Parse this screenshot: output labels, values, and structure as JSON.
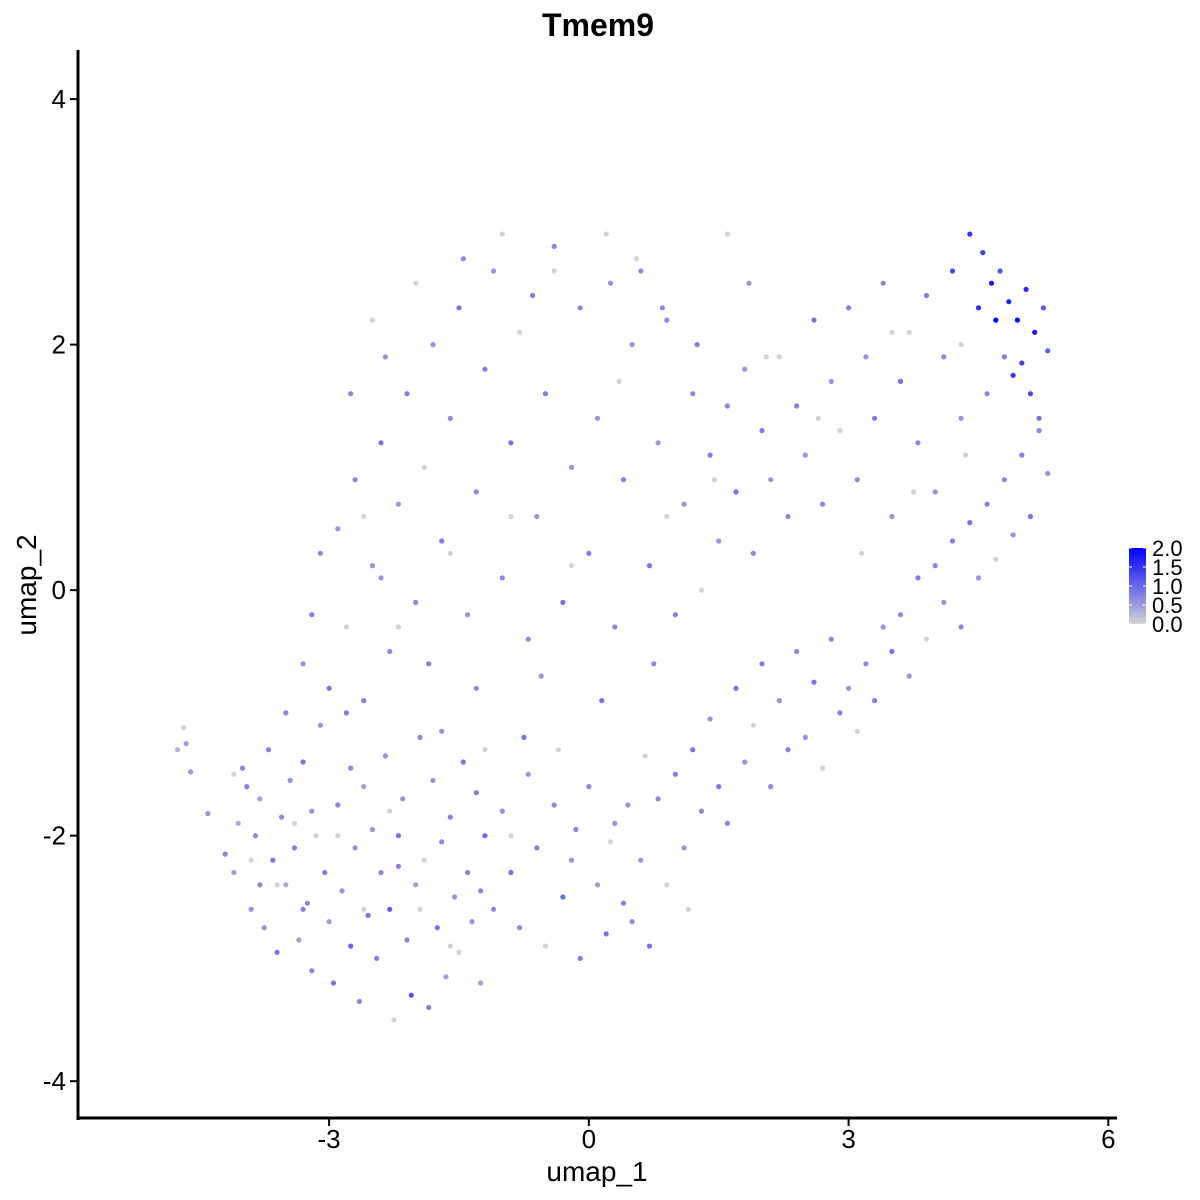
{
  "chart_data": {
    "type": "scatter",
    "title": "Tmem9",
    "xlabel": "umap_1",
    "ylabel": "umap_2",
    "xlim": [
      -5.9,
      6.1
    ],
    "ylim": [
      -4.3,
      4.4
    ],
    "x_ticks": [
      -3,
      0,
      3,
      6
    ],
    "y_ticks": [
      -4,
      -2,
      0,
      2,
      4
    ],
    "x_tick_labels": [
      "-3",
      "0",
      "3",
      "6"
    ],
    "y_tick_labels": [
      "-4",
      "-2",
      "0",
      "2",
      "4"
    ],
    "grid": false,
    "color_scale": {
      "low": "#d3d3d3",
      "high": "#0000ff",
      "min": 0.0,
      "max": 2.0,
      "ticks": [
        0.0,
        0.5,
        1.0,
        1.5,
        2.0
      ],
      "tick_labels": [
        "0.0",
        "0.5",
        "1.0",
        "1.5",
        "2.0"
      ],
      "placement": "right"
    },
    "points": [
      [
        -4.75,
        -1.3,
        0.3
      ],
      [
        -4.68,
        -1.12,
        0.0
      ],
      [
        -4.65,
        -1.25,
        0.5
      ],
      [
        -4.6,
        -1.48,
        0.6
      ],
      [
        -4.4,
        -1.82,
        0.6
      ],
      [
        -4.2,
        -2.15,
        0.7
      ],
      [
        -4.1,
        -2.3,
        0.5
      ],
      [
        -4.05,
        -1.9,
        0.4
      ],
      [
        -4.0,
        -1.45,
        0.7
      ],
      [
        -3.95,
        -1.6,
        0.8
      ],
      [
        -3.9,
        -2.6,
        0.6
      ],
      [
        -3.85,
        -2.0,
        0.7
      ],
      [
        -3.8,
        -1.7,
        0.5
      ],
      [
        -3.75,
        -2.75,
        0.6
      ],
      [
        -3.7,
        -1.3,
        0.8
      ],
      [
        -3.65,
        -2.2,
        0.9
      ],
      [
        -3.6,
        -2.95,
        0.9
      ],
      [
        -3.55,
        -1.85,
        0.7
      ],
      [
        -3.5,
        -2.4,
        0.4
      ],
      [
        -3.45,
        -1.55,
        0.6
      ],
      [
        -3.4,
        -2.1,
        0.8
      ],
      [
        -3.35,
        -2.85,
        0.5
      ],
      [
        -3.3,
        -1.4,
        0.9
      ],
      [
        -3.25,
        -2.55,
        0.7
      ],
      [
        -3.2,
        -3.1,
        0.7
      ],
      [
        -3.15,
        -2.0,
        0.0
      ],
      [
        -3.1,
        -1.1,
        0.6
      ],
      [
        -3.05,
        -2.3,
        0.8
      ],
      [
        -3.0,
        -2.7,
        0.5
      ],
      [
        -2.95,
        -3.2,
        0.9
      ],
      [
        -2.9,
        -1.75,
        0.7
      ],
      [
        -2.85,
        -2.45,
        0.6
      ],
      [
        -2.8,
        -1.0,
        0.8
      ],
      [
        -2.75,
        -2.9,
        1.0
      ],
      [
        -2.7,
        -2.1,
        0.6
      ],
      [
        -2.65,
        -3.35,
        0.7
      ],
      [
        -2.6,
        -1.6,
        0.5
      ],
      [
        -2.55,
        -2.65,
        0.9
      ],
      [
        -2.5,
        -1.95,
        0.6
      ],
      [
        -2.45,
        -3.0,
        0.8
      ],
      [
        -2.4,
        -2.3,
        0.7
      ],
      [
        -2.35,
        -1.35,
        0.6
      ],
      [
        -2.3,
        -2.6,
        1.1
      ],
      [
        -2.25,
        -3.5,
        0.0
      ],
      [
        -2.2,
        -2.0,
        0.9
      ],
      [
        -2.15,
        -1.7,
        0.6
      ],
      [
        -2.1,
        -2.85,
        0.7
      ],
      [
        -2.05,
        -3.3,
        1.2
      ],
      [
        -2.0,
        -2.4,
        0.5
      ],
      [
        -1.95,
        -1.2,
        0.7
      ],
      [
        -1.9,
        -2.2,
        0.0
      ],
      [
        -1.85,
        -3.4,
        0.8
      ],
      [
        -1.8,
        -1.55,
        0.6
      ],
      [
        -1.75,
        -2.75,
        0.9
      ],
      [
        -1.7,
        -2.05,
        0.7
      ],
      [
        -1.65,
        -3.15,
        0.5
      ],
      [
        -1.6,
        -1.85,
        0.8
      ],
      [
        -1.55,
        -2.5,
        0.6
      ],
      [
        -1.5,
        -2.95,
        0.0
      ],
      [
        -1.45,
        -1.4,
        0.9
      ],
      [
        -1.4,
        -2.3,
        0.7
      ],
      [
        -1.35,
        -2.7,
        0.6
      ],
      [
        -1.3,
        -1.65,
        0.8
      ],
      [
        -1.25,
        -3.2,
        0.5
      ],
      [
        -1.2,
        -2.0,
        1.0
      ],
      [
        -1.1,
        -2.6,
        0.7
      ],
      [
        -1.0,
        -1.8,
        0.6
      ],
      [
        -0.9,
        -2.3,
        0.9
      ],
      [
        -0.8,
        -2.75,
        0.7
      ],
      [
        -0.7,
        -1.5,
        0.6
      ],
      [
        -0.6,
        -2.1,
        0.8
      ],
      [
        -0.5,
        -2.9,
        0.0
      ],
      [
        -0.4,
        -1.75,
        0.7
      ],
      [
        -0.3,
        -2.5,
        1.0
      ],
      [
        -0.2,
        -2.2,
        0.6
      ],
      [
        -0.1,
        -3.0,
        0.8
      ],
      [
        0.0,
        -1.6,
        0.7
      ],
      [
        0.1,
        -2.4,
        0.5
      ],
      [
        0.2,
        -2.8,
        0.9
      ],
      [
        0.3,
        -1.9,
        0.6
      ],
      [
        0.4,
        -2.55,
        0.8
      ],
      [
        0.5,
        -2.7,
        0.7
      ],
      [
        0.6,
        -2.2,
        0.6
      ],
      [
        0.7,
        -2.9,
        0.9
      ],
      [
        0.8,
        -1.7,
        0.7
      ],
      [
        0.9,
        -2.4,
        0.0
      ],
      [
        1.0,
        -1.5,
        0.8
      ],
      [
        1.1,
        -2.1,
        0.6
      ],
      [
        1.2,
        -1.3,
        0.9
      ],
      [
        1.3,
        -1.8,
        0.7
      ],
      [
        1.4,
        -1.05,
        0.6
      ],
      [
        1.5,
        -1.6,
        0.8
      ],
      [
        1.6,
        -1.9,
        0.7
      ],
      [
        1.7,
        -0.8,
        0.9
      ],
      [
        1.8,
        -1.4,
        0.6
      ],
      [
        1.9,
        -1.1,
        0.0
      ],
      [
        2.0,
        -0.6,
        0.8
      ],
      [
        2.1,
        -1.6,
        0.7
      ],
      [
        2.2,
        -0.9,
        0.6
      ],
      [
        2.3,
        -1.3,
        0.8
      ],
      [
        2.4,
        -0.5,
        0.7
      ],
      [
        2.5,
        -1.2,
        0.6
      ],
      [
        2.6,
        -0.75,
        0.9
      ],
      [
        2.7,
        -1.45,
        0.0
      ],
      [
        2.8,
        -0.4,
        0.7
      ],
      [
        2.9,
        -1.0,
        0.8
      ],
      [
        3.0,
        -0.8,
        0.6
      ],
      [
        3.1,
        -1.15,
        0.0
      ],
      [
        3.2,
        -0.6,
        0.7
      ],
      [
        3.3,
        -0.9,
        0.8
      ],
      [
        3.4,
        -0.3,
        0.6
      ],
      [
        3.5,
        -0.5,
        0.9
      ],
      [
        3.6,
        -0.2,
        0.7
      ],
      [
        3.7,
        -0.7,
        0.6
      ],
      [
        3.8,
        0.1,
        0.8
      ],
      [
        3.9,
        -0.4,
        0.0
      ],
      [
        4.0,
        0.2,
        0.7
      ],
      [
        4.1,
        -0.1,
        0.6
      ],
      [
        4.2,
        0.4,
        0.8
      ],
      [
        4.3,
        -0.3,
        0.7
      ],
      [
        4.4,
        0.55,
        0.9
      ],
      [
        4.5,
        0.1,
        0.6
      ],
      [
        4.6,
        0.7,
        0.8
      ],
      [
        4.7,
        0.25,
        0.0
      ],
      [
        4.8,
        0.9,
        0.7
      ],
      [
        4.9,
        0.45,
        0.6
      ],
      [
        5.0,
        1.1,
        0.8
      ],
      [
        5.1,
        0.6,
        0.9
      ],
      [
        5.2,
        1.3,
        0.7
      ],
      [
        5.3,
        0.95,
        0.6
      ],
      [
        -3.5,
        -1.0,
        0.7
      ],
      [
        -3.3,
        -0.6,
        0.6
      ],
      [
        -3.2,
        -0.2,
        0.8
      ],
      [
        -3.1,
        0.3,
        0.7
      ],
      [
        -3.0,
        -0.8,
        0.9
      ],
      [
        -2.9,
        0.5,
        0.6
      ],
      [
        -2.8,
        -0.3,
        0.0
      ],
      [
        -2.7,
        0.9,
        0.7
      ],
      [
        -2.6,
        -0.9,
        0.8
      ],
      [
        -2.5,
        0.2,
        0.6
      ],
      [
        -2.4,
        1.2,
        0.9
      ],
      [
        -2.3,
        -0.5,
        0.7
      ],
      [
        -2.2,
        0.7,
        0.6
      ],
      [
        -2.1,
        1.6,
        0.8
      ],
      [
        -2.0,
        -0.1,
        0.7
      ],
      [
        -1.9,
        1.0,
        0.0
      ],
      [
        -1.8,
        2.0,
        0.6
      ],
      [
        -1.7,
        0.4,
        0.8
      ],
      [
        -1.6,
        1.4,
        0.7
      ],
      [
        -1.5,
        2.3,
        0.9
      ],
      [
        -1.4,
        -0.2,
        0.6
      ],
      [
        -1.3,
        0.8,
        0.7
      ],
      [
        -1.2,
        1.8,
        0.8
      ],
      [
        -1.1,
        2.6,
        0.6
      ],
      [
        -1.0,
        0.1,
        0.7
      ],
      [
        -0.9,
        1.2,
        0.9
      ],
      [
        -0.8,
        2.1,
        0.0
      ],
      [
        -0.7,
        -0.4,
        0.7
      ],
      [
        -0.6,
        0.6,
        0.6
      ],
      [
        -0.5,
        1.6,
        0.8
      ],
      [
        -0.4,
        2.8,
        0.7
      ],
      [
        -0.3,
        -0.1,
        0.9
      ],
      [
        -0.2,
        1.0,
        0.6
      ],
      [
        -0.1,
        2.3,
        0.7
      ],
      [
        0.0,
        0.3,
        0.8
      ],
      [
        0.1,
        1.4,
        0.6
      ],
      [
        0.2,
        2.9,
        0.0
      ],
      [
        0.3,
        -0.3,
        0.7
      ],
      [
        0.4,
        0.9,
        0.8
      ],
      [
        0.5,
        2.0,
        0.6
      ],
      [
        0.6,
        2.6,
        0.7
      ],
      [
        0.7,
        0.2,
        0.9
      ],
      [
        0.8,
        1.2,
        0.6
      ],
      [
        0.9,
        2.2,
        0.7
      ],
      [
        1.0,
        -0.2,
        0.8
      ],
      [
        1.1,
        0.7,
        0.6
      ],
      [
        1.2,
        1.6,
        0.7
      ],
      [
        1.3,
        0.0,
        0.0
      ],
      [
        1.4,
        1.1,
        0.8
      ],
      [
        1.5,
        0.4,
        0.6
      ],
      [
        1.6,
        1.5,
        0.7
      ],
      [
        1.7,
        0.8,
        0.9
      ],
      [
        1.8,
        1.8,
        0.6
      ],
      [
        1.9,
        0.3,
        0.7
      ],
      [
        2.0,
        1.3,
        0.8
      ],
      [
        2.1,
        0.9,
        0.6
      ],
      [
        2.2,
        1.9,
        0.0
      ],
      [
        2.3,
        0.6,
        0.7
      ],
      [
        2.4,
        1.5,
        0.8
      ],
      [
        2.5,
        1.1,
        0.6
      ],
      [
        2.6,
        2.2,
        0.9
      ],
      [
        2.7,
        0.7,
        0.7
      ],
      [
        2.8,
        1.7,
        0.6
      ],
      [
        2.9,
        1.3,
        0.0
      ],
      [
        3.0,
        2.3,
        0.8
      ],
      [
        3.1,
        0.9,
        0.7
      ],
      [
        3.2,
        1.9,
        0.6
      ],
      [
        3.3,
        1.4,
        0.8
      ],
      [
        3.4,
        2.5,
        0.7
      ],
      [
        3.5,
        0.6,
        0.6
      ],
      [
        3.6,
        1.7,
        0.9
      ],
      [
        3.7,
        2.1,
        0.0
      ],
      [
        3.8,
        1.2,
        0.7
      ],
      [
        3.9,
        2.4,
        0.8
      ],
      [
        4.0,
        0.8,
        0.6
      ],
      [
        4.1,
        1.9,
        0.7
      ],
      [
        4.2,
        2.6,
        1.3
      ],
      [
        4.3,
        1.4,
        0.6
      ],
      [
        4.4,
        2.9,
        1.5
      ],
      [
        4.5,
        2.3,
        1.6
      ],
      [
        4.55,
        2.75,
        1.4
      ],
      [
        4.6,
        1.6,
        0.7
      ],
      [
        4.65,
        2.5,
        1.8
      ],
      [
        4.7,
        2.2,
        2.0
      ],
      [
        4.75,
        2.6,
        1.2
      ],
      [
        4.8,
        1.9,
        0.8
      ],
      [
        4.85,
        2.35,
        1.7
      ],
      [
        4.9,
        1.75,
        1.5
      ],
      [
        4.95,
        2.2,
        1.9
      ],
      [
        5.0,
        1.85,
        1.4
      ],
      [
        5.05,
        2.45,
        1.6
      ],
      [
        5.1,
        1.6,
        1.3
      ],
      [
        5.15,
        2.1,
        1.8
      ],
      [
        5.2,
        1.4,
        0.9
      ],
      [
        5.25,
        2.3,
        1.2
      ],
      [
        5.3,
        1.95,
        1.1
      ],
      [
        -4.1,
        -1.5,
        0.0
      ],
      [
        -3.9,
        -2.2,
        0.0
      ],
      [
        -3.6,
        -2.4,
        0.0
      ],
      [
        -3.4,
        -1.9,
        0.0
      ],
      [
        -2.9,
        -2.0,
        0.0
      ],
      [
        -2.6,
        -2.6,
        0.0
      ],
      [
        -2.3,
        -1.8,
        0.0
      ],
      [
        -1.95,
        -2.6,
        0.0
      ],
      [
        -1.6,
        -2.9,
        0.0
      ],
      [
        -1.2,
        -1.3,
        0.0
      ],
      [
        -0.9,
        -2.0,
        0.0
      ],
      [
        -0.35,
        -1.3,
        0.0
      ],
      [
        0.25,
        -2.05,
        0.0
      ],
      [
        0.65,
        -1.35,
        0.0
      ],
      [
        1.15,
        -2.6,
        0.0
      ],
      [
        -2.6,
        0.6,
        0.0
      ],
      [
        -2.2,
        -0.3,
        0.0
      ],
      [
        -1.6,
        0.3,
        0.0
      ],
      [
        -0.9,
        0.6,
        0.0
      ],
      [
        -0.2,
        0.2,
        0.0
      ],
      [
        0.35,
        1.7,
        0.0
      ],
      [
        0.9,
        0.6,
        0.0
      ],
      [
        1.45,
        0.9,
        0.0
      ],
      [
        2.05,
        1.9,
        0.0
      ],
      [
        2.65,
        1.4,
        0.0
      ],
      [
        3.15,
        0.3,
        0.0
      ],
      [
        3.75,
        0.8,
        0.0
      ],
      [
        4.35,
        1.1,
        0.0
      ],
      [
        -1.0,
        2.9,
        0.0
      ],
      [
        -0.4,
        2.6,
        0.0
      ],
      [
        0.55,
        2.7,
        0.0
      ],
      [
        1.6,
        2.9,
        0.0
      ],
      [
        -2.0,
        2.5,
        0.0
      ],
      [
        -2.5,
        2.2,
        0.0
      ],
      [
        3.5,
        2.1,
        0.0
      ],
      [
        4.3,
        2.0,
        0.0
      ],
      [
        -3.2,
        -1.8,
        0.6
      ],
      [
        -2.75,
        -1.45,
        0.7
      ],
      [
        -2.2,
        -2.25,
        0.8
      ],
      [
        -1.7,
        -1.15,
        0.6
      ],
      [
        -1.25,
        -2.45,
        0.7
      ],
      [
        -0.75,
        -1.2,
        0.9
      ],
      [
        -0.15,
        -1.95,
        0.7
      ],
      [
        0.45,
        -1.75,
        0.6
      ],
      [
        -2.4,
        0.1,
        0.6
      ],
      [
        -1.85,
        -0.6,
        0.8
      ],
      [
        -1.3,
        -0.8,
        0.7
      ],
      [
        -0.55,
        -0.7,
        0.6
      ],
      [
        0.15,
        -0.9,
        0.9
      ],
      [
        0.75,
        -0.6,
        0.7
      ],
      [
        -2.75,
        1.6,
        0.7
      ],
      [
        -2.35,
        1.9,
        0.6
      ],
      [
        -1.45,
        2.7,
        0.7
      ],
      [
        -0.65,
        2.4,
        0.8
      ],
      [
        0.25,
        2.5,
        0.6
      ],
      [
        0.85,
        2.3,
        0.7
      ],
      [
        1.25,
        2.0,
        0.8
      ],
      [
        1.85,
        2.5,
        0.6
      ],
      [
        -3.3,
        -2.6,
        0.8
      ],
      [
        -3.8,
        -2.4,
        0.7
      ]
    ]
  }
}
